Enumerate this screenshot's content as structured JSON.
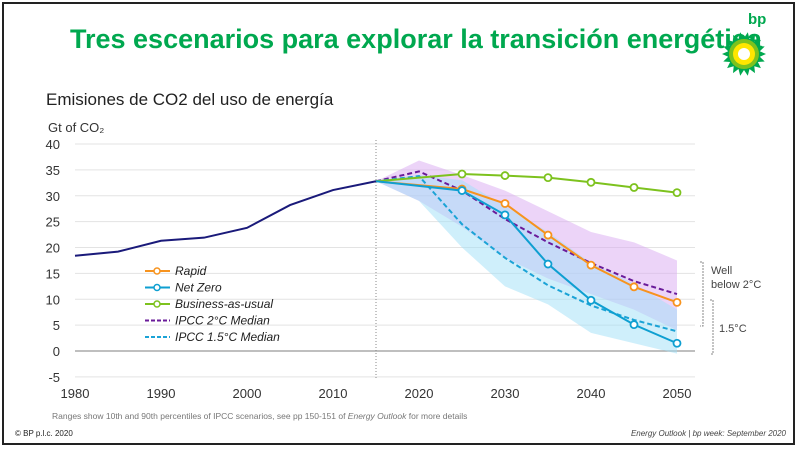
{
  "header": {
    "title": "Tres escenarios para explorar la transición energética",
    "logo_text": "bp"
  },
  "chart_data": {
    "type": "line",
    "title": "Emisiones de CO2 del uso de energía",
    "ylabel": "Gt of CO₂",
    "xlabel": "",
    "xlim": [
      1980,
      2050
    ],
    "ylim": [
      -5,
      40
    ],
    "xticks": [
      1980,
      1990,
      2000,
      2010,
      2020,
      2030,
      2040,
      2050
    ],
    "yticks": [
      -5,
      0,
      5,
      10,
      15,
      20,
      25,
      30,
      35,
      40
    ],
    "grid": true,
    "legend_position": "center-left",
    "history": {
      "x": [
        1980,
        1985,
        1990,
        1995,
        2000,
        2005,
        2010,
        2015
      ],
      "y": [
        18.4,
        19.2,
        21.3,
        21.9,
        23.8,
        28.2,
        31.1,
        32.8
      ],
      "color": "#1a1a7a"
    },
    "series": [
      {
        "name": "Rapid",
        "style": "solid-marker",
        "color": "#f7931e",
        "x": [
          2015,
          2025,
          2030,
          2035,
          2040,
          2045,
          2050
        ],
        "y": [
          32.8,
          31.3,
          28.5,
          22.4,
          16.6,
          12.4,
          9.4
        ]
      },
      {
        "name": "Net Zero",
        "style": "solid-marker",
        "color": "#0e9fd1",
        "x": [
          2015,
          2025,
          2030,
          2035,
          2040,
          2045,
          2050
        ],
        "y": [
          32.8,
          31.0,
          26.3,
          16.8,
          9.8,
          5.1,
          1.5
        ]
      },
      {
        "name": "Business-as-usual",
        "style": "solid-marker",
        "color": "#7dc21e",
        "x": [
          2015,
          2025,
          2030,
          2035,
          2040,
          2045,
          2050
        ],
        "y": [
          32.8,
          34.2,
          33.9,
          33.5,
          32.6,
          31.6,
          30.6
        ]
      },
      {
        "name": "IPCC 2°C Median",
        "style": "dashed",
        "color": "#6a1b9a",
        "x": [
          2015,
          2020,
          2025,
          2030,
          2035,
          2040,
          2045,
          2050
        ],
        "y": [
          32.8,
          34.7,
          31.0,
          25.5,
          21.0,
          17.0,
          13.5,
          11.0
        ]
      },
      {
        "name": "IPCC 1.5°C Median",
        "style": "dashed",
        "color": "#1ba3d6",
        "x": [
          2015,
          2020,
          2025,
          2030,
          2035,
          2040,
          2045,
          2050
        ],
        "y": [
          32.8,
          33.8,
          24.5,
          18.0,
          12.7,
          8.8,
          6.0,
          3.8
        ]
      }
    ],
    "ranges": [
      {
        "label": "IPCC 2°C range",
        "color": "#d9a9f2",
        "x": [
          2015,
          2020,
          2025,
          2030,
          2035,
          2040,
          2045,
          2050
        ],
        "high": [
          32.8,
          36.8,
          34.0,
          31.0,
          27.0,
          23.0,
          21.0,
          17.5
        ],
        "low": [
          32.8,
          29.0,
          24.0,
          18.0,
          14.0,
          11.0,
          8.0,
          4.0
        ]
      },
      {
        "label": "IPCC 1.5°C range",
        "color": "#9fe0f7",
        "x": [
          2015,
          2020,
          2025,
          2030,
          2035,
          2040,
          2045,
          2050
        ],
        "high": [
          32.8,
          34.0,
          33.0,
          28.0,
          23.0,
          17.0,
          13.0,
          8.0
        ],
        "low": [
          32.8,
          29.0,
          20.0,
          12.5,
          9.0,
          3.5,
          1.5,
          -0.5
        ]
      }
    ],
    "annotations": {
      "well_below_line1": "Well",
      "well_below_line2": "below 2°C",
      "one_point_five": "1.5°C"
    },
    "projection_start": 2015
  },
  "footer": {
    "note_pre": "Ranges show 10th and 90th percentiles of IPCC scenarios, see pp 150-151 of ",
    "note_italic": "Energy Outlook",
    "note_post": " for more details",
    "copyright": "© BP p.l.c. 2020",
    "source": "Energy Outlook  |  bp week: September 2020"
  }
}
